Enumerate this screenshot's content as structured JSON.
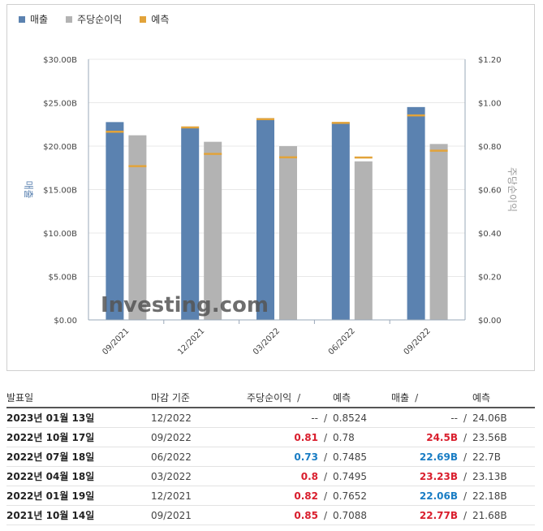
{
  "legend": [
    {
      "label": "매출",
      "color": "#5b82b0"
    },
    {
      "label": "주당순이익",
      "color": "#b3b3b3"
    },
    {
      "label": "예측",
      "color": "#e2a33a"
    }
  ],
  "chart_data": {
    "type": "bar",
    "categories": [
      "09/2021",
      "12/2021",
      "03/2022",
      "06/2022",
      "09/2022"
    ],
    "series": [
      {
        "name": "매출",
        "axis": "left",
        "values": [
          22.77,
          22.06,
          23.23,
          22.69,
          24.5
        ],
        "forecast": [
          21.68,
          22.18,
          23.13,
          22.7,
          23.56
        ],
        "color": "#5b82b0"
      },
      {
        "name": "주당순이익",
        "axis": "right",
        "values": [
          0.85,
          0.82,
          0.8,
          0.73,
          0.81
        ],
        "forecast": [
          0.7088,
          0.7652,
          0.7495,
          0.7485,
          0.78
        ],
        "color": "#b3b3b3"
      }
    ],
    "forecast_color": "#e2a33a",
    "ylabel_left": "매출",
    "ylabel_right": "주당순이익",
    "ylim_left": [
      0,
      30
    ],
    "ylim_right": [
      0,
      1.2
    ],
    "yticks_left": [
      "$0.00",
      "$5.00B",
      "$10.00B",
      "$15.00B",
      "$20.00B",
      "$25.00B",
      "$30.00B"
    ],
    "yticks_right": [
      "$0.00",
      "$0.20",
      "$0.40",
      "$0.60",
      "$0.80",
      "$1.00",
      "$1.20"
    ],
    "watermark": "Investing.com"
  },
  "table": {
    "headers": {
      "date": "발표일",
      "period": "마감 기준",
      "eps": "주당순이익",
      "eps_forecast": "예측",
      "revenue": "매출",
      "revenue_forecast": "예측",
      "slash": "/"
    },
    "rows": [
      {
        "date": "2023년 01월 13일",
        "period": "12/2022",
        "eps": "--",
        "eps_forecast": "0.8524",
        "revenue": "--",
        "revenue_forecast": "24.06B",
        "eps_color": "neutral",
        "rev_color": "neutral"
      },
      {
        "date": "2022년 10월 17일",
        "period": "09/2022",
        "eps": "0.81",
        "eps_forecast": "0.78",
        "revenue": "24.5B",
        "revenue_forecast": "23.56B",
        "eps_color": "red",
        "rev_color": "red"
      },
      {
        "date": "2022년 07월 18일",
        "period": "06/2022",
        "eps": "0.73",
        "eps_forecast": "0.7485",
        "revenue": "22.69B",
        "revenue_forecast": "22.7B",
        "eps_color": "blue",
        "rev_color": "blue"
      },
      {
        "date": "2022년 04월 18일",
        "period": "03/2022",
        "eps": "0.8",
        "eps_forecast": "0.7495",
        "revenue": "23.23B",
        "revenue_forecast": "23.13B",
        "eps_color": "red",
        "rev_color": "red"
      },
      {
        "date": "2022년 01월 19일",
        "period": "12/2021",
        "eps": "0.82",
        "eps_forecast": "0.7652",
        "revenue": "22.06B",
        "revenue_forecast": "22.18B",
        "eps_color": "red",
        "rev_color": "blue"
      },
      {
        "date": "2021년 10월 14일",
        "period": "09/2021",
        "eps": "0.85",
        "eps_forecast": "0.7088",
        "revenue": "22.77B",
        "revenue_forecast": "21.68B",
        "eps_color": "red",
        "rev_color": "red"
      }
    ]
  }
}
